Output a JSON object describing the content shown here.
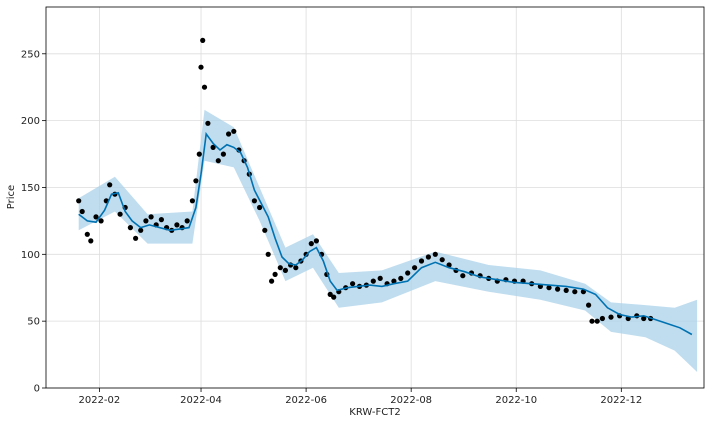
{
  "chart_data": {
    "type": "scatter",
    "title": "",
    "xlabel": "KRW-FCT2",
    "ylabel": "Price",
    "grid": true,
    "xlim": [
      "2022-01-01",
      "2023-01-18"
    ],
    "ylim": [
      0,
      285
    ],
    "x_ticks": [
      "2022-02-01",
      "2022-04-01",
      "2022-06-01",
      "2022-08-01",
      "2022-10-01",
      "2022-12-01"
    ],
    "x_tick_labels": [
      "2022-02",
      "2022-04",
      "2022-06",
      "2022-08",
      "2022-10",
      "2022-12"
    ],
    "y_ticks": [
      0,
      50,
      100,
      150,
      200,
      250
    ],
    "y_tick_labels": [
      "0",
      "50",
      "100",
      "150",
      "200",
      "250"
    ],
    "colors": {
      "observed": "#000000",
      "forecast": "#0072B2",
      "interval": "#a9d2ea"
    },
    "series": [
      {
        "kind": "observed",
        "x": [
          "2022-01-20",
          "2022-01-22",
          "2022-01-25",
          "2022-01-27",
          "2022-01-30",
          "2022-02-02",
          "2022-02-05",
          "2022-02-07",
          "2022-02-10",
          "2022-02-13",
          "2022-02-16",
          "2022-02-19",
          "2022-02-22",
          "2022-02-25",
          "2022-02-28",
          "2022-03-03",
          "2022-03-06",
          "2022-03-09",
          "2022-03-12",
          "2022-03-15",
          "2022-03-18",
          "2022-03-21",
          "2022-03-24",
          "2022-03-27",
          "2022-03-29",
          "2022-03-31",
          "2022-04-01",
          "2022-04-02",
          "2022-04-03",
          "2022-04-05",
          "2022-04-08",
          "2022-04-11",
          "2022-04-14",
          "2022-04-17",
          "2022-04-20",
          "2022-04-23",
          "2022-04-26",
          "2022-04-29",
          "2022-05-02",
          "2022-05-05",
          "2022-05-08",
          "2022-05-10",
          "2022-05-12",
          "2022-05-14",
          "2022-05-17",
          "2022-05-20",
          "2022-05-23",
          "2022-05-26",
          "2022-05-29",
          "2022-06-01",
          "2022-06-04",
          "2022-06-07",
          "2022-06-10",
          "2022-06-13",
          "2022-06-15",
          "2022-06-17",
          "2022-06-20",
          "2022-06-24",
          "2022-06-28",
          "2022-07-02",
          "2022-07-06",
          "2022-07-10",
          "2022-07-14",
          "2022-07-18",
          "2022-07-22",
          "2022-07-26",
          "2022-07-30",
          "2022-08-03",
          "2022-08-07",
          "2022-08-11",
          "2022-08-15",
          "2022-08-19",
          "2022-08-23",
          "2022-08-27",
          "2022-08-31",
          "2022-09-05",
          "2022-09-10",
          "2022-09-15",
          "2022-09-20",
          "2022-09-25",
          "2022-09-30",
          "2022-10-05",
          "2022-10-10",
          "2022-10-15",
          "2022-10-20",
          "2022-10-25",
          "2022-10-30",
          "2022-11-04",
          "2022-11-09",
          "2022-11-12",
          "2022-11-14",
          "2022-11-17",
          "2022-11-20",
          "2022-11-25",
          "2022-11-30",
          "2022-12-05",
          "2022-12-10",
          "2022-12-14",
          "2022-12-18"
        ],
        "y": [
          140,
          132,
          115,
          110,
          128,
          125,
          140,
          152,
          145,
          130,
          135,
          120,
          112,
          118,
          125,
          128,
          122,
          126,
          120,
          118,
          122,
          120,
          125,
          140,
          155,
          175,
          240,
          260,
          225,
          198,
          180,
          170,
          175,
          190,
          192,
          178,
          170,
          160,
          140,
          135,
          118,
          100,
          80,
          85,
          90,
          88,
          92,
          90,
          95,
          100,
          108,
          110,
          100,
          85,
          70,
          68,
          72,
          75,
          78,
          76,
          77,
          80,
          82,
          78,
          80,
          82,
          86,
          90,
          95,
          98,
          100,
          96,
          92,
          88,
          84,
          86,
          84,
          82,
          80,
          81,
          80,
          80,
          78,
          76,
          75,
          74,
          73,
          72,
          72,
          62,
          50,
          50,
          52,
          53,
          54,
          52,
          54,
          52,
          52
        ]
      },
      {
        "kind": "forecast",
        "x": [
          "2022-01-20",
          "2022-01-25",
          "2022-01-30",
          "2022-02-04",
          "2022-02-08",
          "2022-02-12",
          "2022-02-16",
          "2022-02-20",
          "2022-02-25",
          "2022-03-02",
          "2022-03-08",
          "2022-03-14",
          "2022-03-20",
          "2022-03-25",
          "2022-03-29",
          "2022-04-01",
          "2022-04-04",
          "2022-04-08",
          "2022-04-12",
          "2022-04-16",
          "2022-04-20",
          "2022-04-24",
          "2022-04-28",
          "2022-05-02",
          "2022-05-06",
          "2022-05-10",
          "2022-05-14",
          "2022-05-18",
          "2022-05-22",
          "2022-05-26",
          "2022-05-30",
          "2022-06-03",
          "2022-06-07",
          "2022-06-11",
          "2022-06-15",
          "2022-06-19",
          "2022-06-25",
          "2022-07-01",
          "2022-07-08",
          "2022-07-15",
          "2022-07-22",
          "2022-07-30",
          "2022-08-07",
          "2022-08-15",
          "2022-08-23",
          "2022-09-01",
          "2022-09-10",
          "2022-09-20",
          "2022-09-30",
          "2022-10-10",
          "2022-10-20",
          "2022-10-30",
          "2022-11-09",
          "2022-11-16",
          "2022-11-23",
          "2022-11-30",
          "2022-12-07",
          "2022-12-14",
          "2022-12-21",
          "2022-12-28",
          "2023-01-04",
          "2023-01-11"
        ],
        "y": [
          130,
          125,
          124,
          133,
          145,
          146,
          132,
          125,
          120,
          122,
          120,
          118,
          119,
          120,
          135,
          160,
          190,
          183,
          178,
          182,
          180,
          176,
          165,
          148,
          138,
          128,
          112,
          98,
          93,
          92,
          96,
          102,
          105,
          95,
          80,
          73,
          75,
          76,
          77,
          76,
          78,
          80,
          90,
          94,
          90,
          87,
          83,
          81,
          79,
          78,
          77,
          76,
          74,
          70,
          60,
          55,
          53,
          54,
          51,
          48,
          45,
          40
        ]
      },
      {
        "kind": "interval",
        "x": [
          "2022-01-20",
          "2022-02-10",
          "2022-03-01",
          "2022-03-27",
          "2022-04-03",
          "2022-04-20",
          "2022-05-05",
          "2022-05-20",
          "2022-06-05",
          "2022-06-20",
          "2022-07-15",
          "2022-08-15",
          "2022-09-15",
          "2022-10-15",
          "2022-11-10",
          "2022-11-25",
          "2022-12-15",
          "2023-01-01",
          "2023-01-14"
        ],
        "lower": [
          118,
          132,
          108,
          108,
          170,
          165,
          125,
          80,
          90,
          60,
          64,
          80,
          72,
          66,
          58,
          42,
          38,
          28,
          12
        ],
        "upper": [
          142,
          158,
          130,
          132,
          208,
          195,
          150,
          105,
          115,
          86,
          88,
          102,
          92,
          88,
          78,
          64,
          62,
          60,
          66
        ]
      }
    ]
  }
}
